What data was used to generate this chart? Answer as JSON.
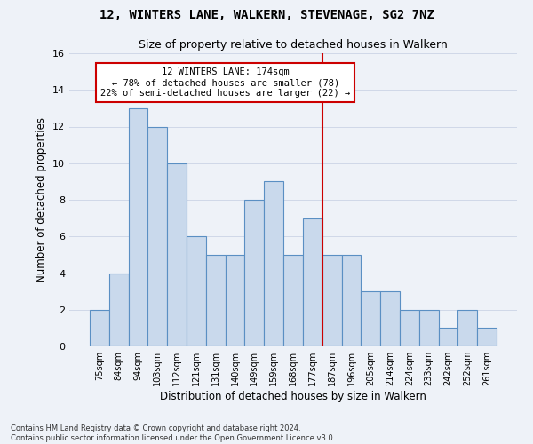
{
  "title1": "12, WINTERS LANE, WALKERN, STEVENAGE, SG2 7NZ",
  "title2": "Size of property relative to detached houses in Walkern",
  "xlabel": "Distribution of detached houses by size in Walkern",
  "ylabel": "Number of detached properties",
  "categories": [
    "75sqm",
    "84sqm",
    "94sqm",
    "103sqm",
    "112sqm",
    "121sqm",
    "131sqm",
    "140sqm",
    "149sqm",
    "159sqm",
    "168sqm",
    "177sqm",
    "187sqm",
    "196sqm",
    "205sqm",
    "214sqm",
    "224sqm",
    "233sqm",
    "242sqm",
    "252sqm",
    "261sqm"
  ],
  "values": [
    2,
    4,
    13,
    12,
    10,
    6,
    5,
    5,
    8,
    9,
    5,
    7,
    5,
    5,
    3,
    3,
    2,
    2,
    1,
    2,
    1
  ],
  "bar_color": "#c9d9ec",
  "bar_edge_color": "#5a8fc3",
  "grid_color": "#d0d8e8",
  "background_color": "#eef2f8",
  "vline_x_index": 11.5,
  "vline_color": "#cc0000",
  "annotation_text": "12 WINTERS LANE: 174sqm\n← 78% of detached houses are smaller (78)\n22% of semi-detached houses are larger (22) →",
  "annotation_box_color": "#ffffff",
  "annotation_box_edge": "#cc0000",
  "footnote1": "Contains HM Land Registry data © Crown copyright and database right 2024.",
  "footnote2": "Contains public sector information licensed under the Open Government Licence v3.0.",
  "ylim": [
    0,
    16
  ],
  "yticks": [
    0,
    2,
    4,
    6,
    8,
    10,
    12,
    14,
    16
  ]
}
